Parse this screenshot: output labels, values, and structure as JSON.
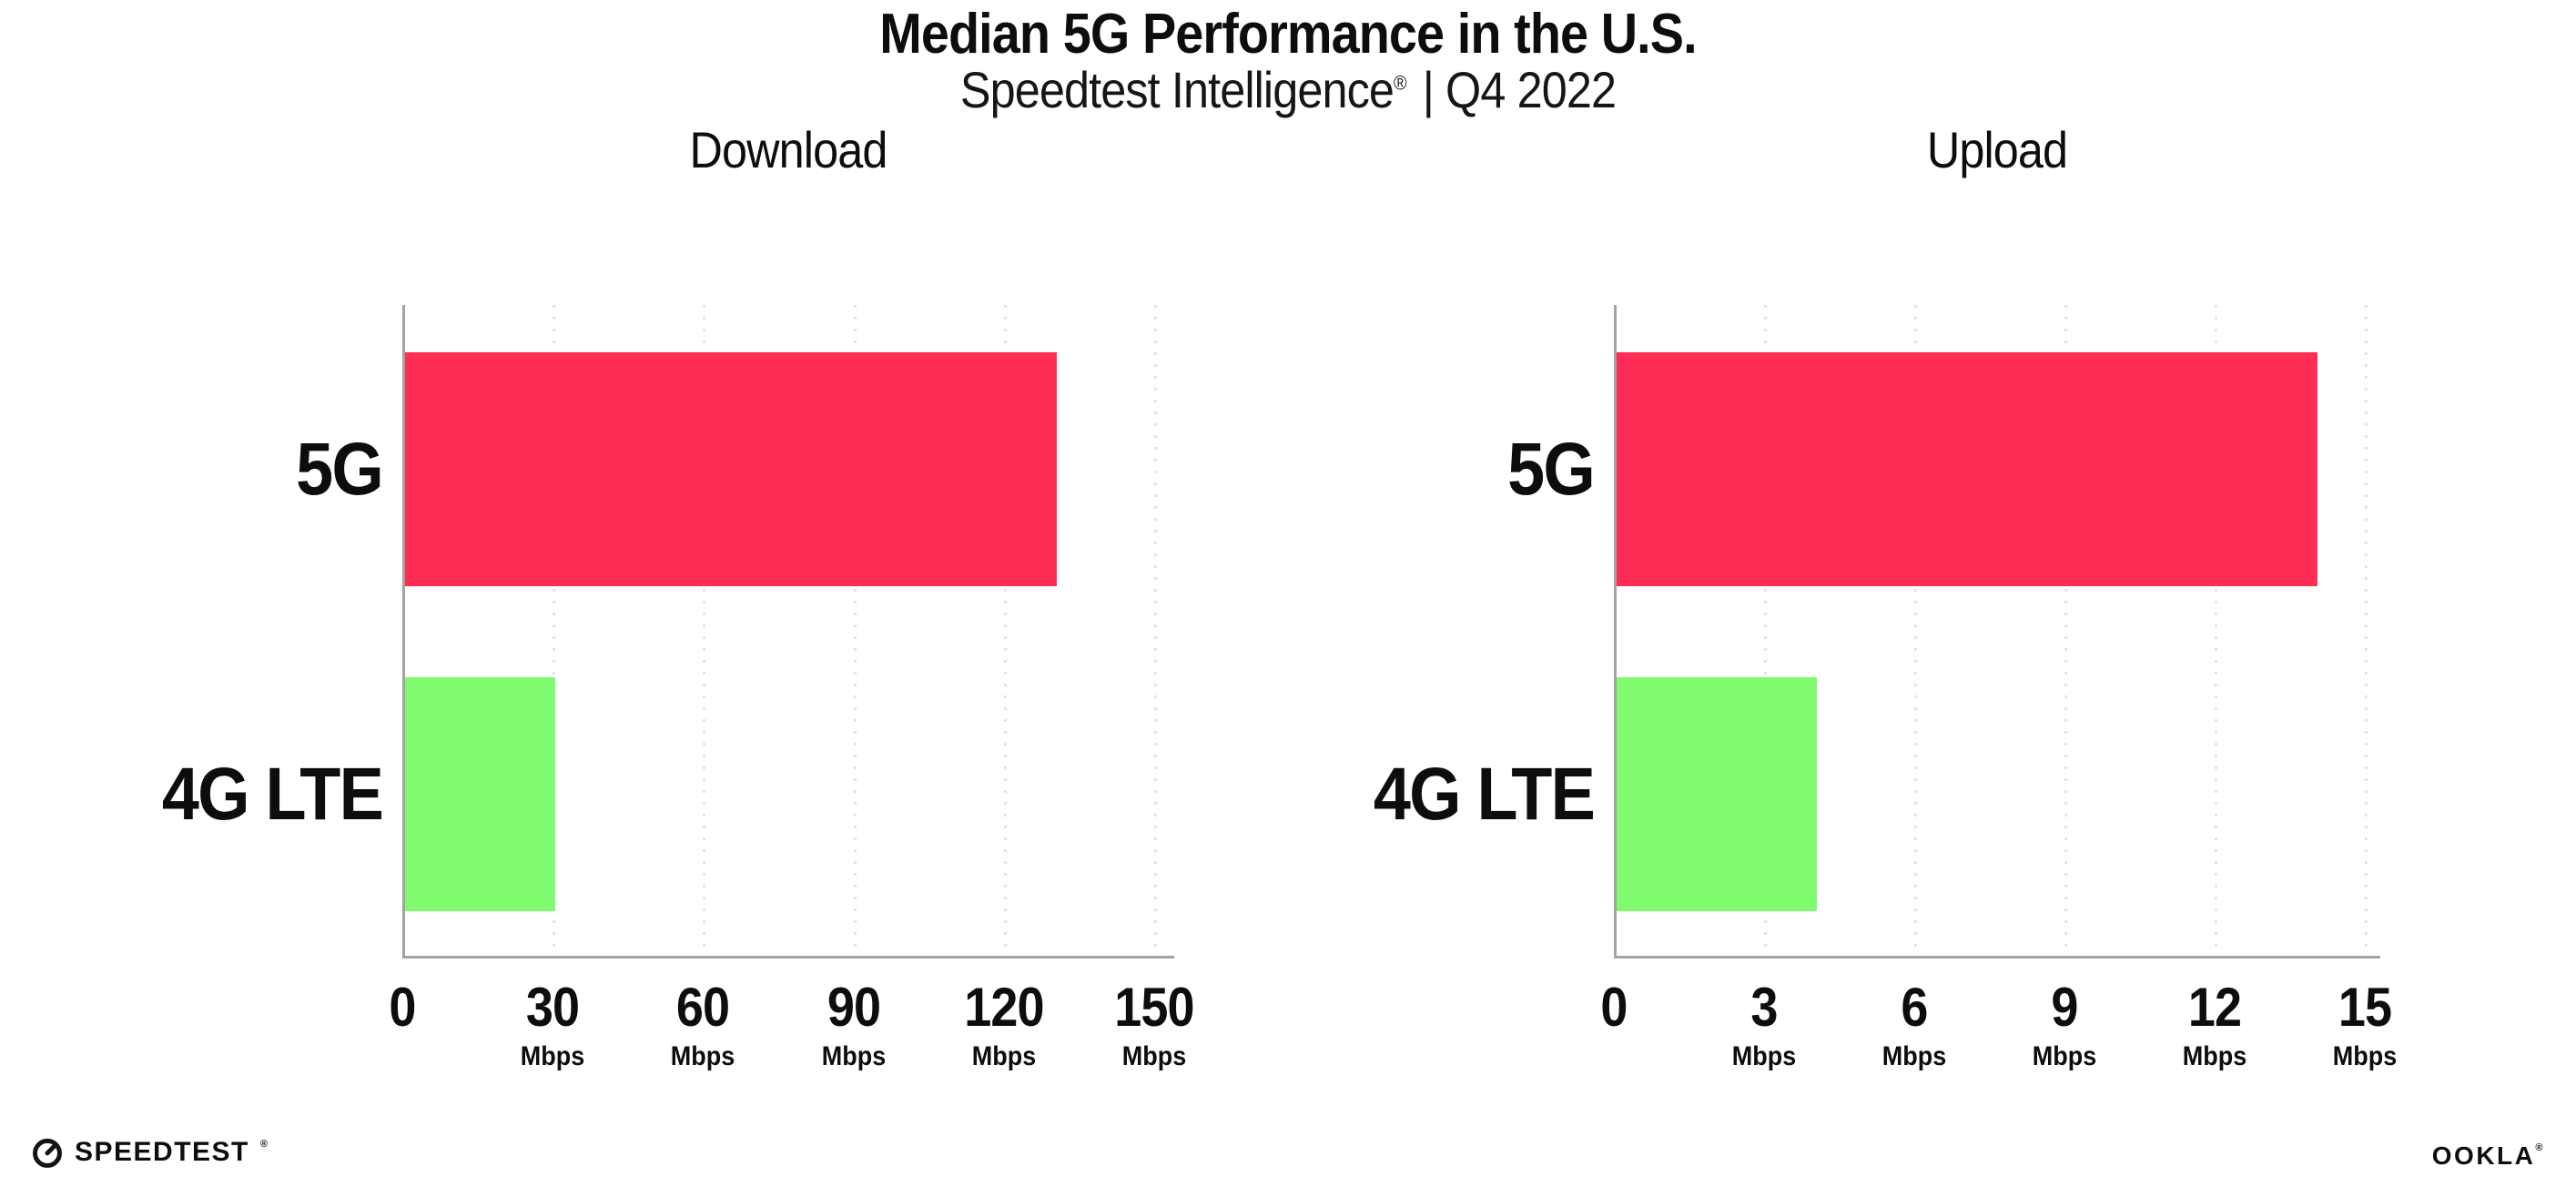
{
  "header": {
    "title": "Median 5G Performance in the U.S.",
    "subtitle_brand": "Speedtest Intelligence",
    "subtitle_reg": "®",
    "subtitle_rest": "| Q4 2022"
  },
  "chart_data": [
    {
      "type": "bar",
      "orientation": "horizontal",
      "title": "Download",
      "categories": [
        "5G",
        "4G LTE"
      ],
      "values": [
        130,
        30
      ],
      "unit": "Mbps",
      "xlabel": "",
      "ylabel": "",
      "xlim": [
        0,
        150
      ],
      "xticks": [
        0,
        30,
        60,
        90,
        120,
        150
      ],
      "bar_colors": [
        "#fd2d55",
        "#80fa6e"
      ],
      "grid": "vertical-dotted",
      "legend_position": "none"
    },
    {
      "type": "bar",
      "orientation": "horizontal",
      "title": "Upload",
      "categories": [
        "5G",
        "4G LTE"
      ],
      "values": [
        14,
        4
      ],
      "unit": "Mbps",
      "xlabel": "",
      "ylabel": "",
      "xlim": [
        0,
        15
      ],
      "xticks": [
        0,
        3,
        6,
        9,
        12,
        15
      ],
      "bar_colors": [
        "#fd2d55",
        "#80fa6e"
      ],
      "grid": "vertical-dotted",
      "legend_position": "none"
    }
  ],
  "footer": {
    "speedtest_label": "SPEEDTEST",
    "speedtest_reg": "®",
    "ookla_label": "OOKLA",
    "ookla_reg": "®"
  },
  "colors": {
    "bar_5g": "#fd2d55",
    "bar_4g_lte": "#80fa6e",
    "axis": "#a3a3a3",
    "gridline": "#e1e1ec",
    "text": "#0d0d0d",
    "background": "#ffffff"
  }
}
